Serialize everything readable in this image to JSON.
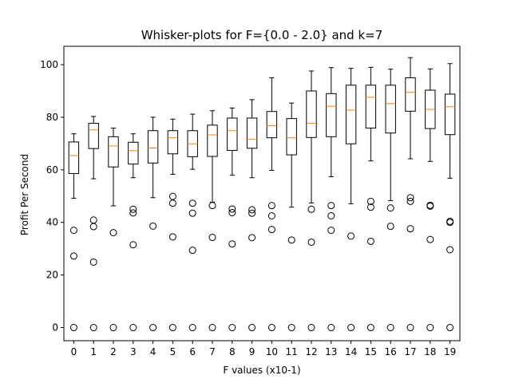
{
  "chart_data": {
    "type": "box",
    "title": "Whisker-plots for F={0.0 - 2.0} and k=7",
    "xlabel": "F values (x10-1)",
    "ylabel": "Profit Per Second",
    "xlim": [
      -0.5,
      19.5
    ],
    "ylim": [
      -5,
      107
    ],
    "yticks": [
      0,
      20,
      40,
      60,
      80,
      100
    ],
    "categories": [
      "0",
      "1",
      "2",
      "3",
      "4",
      "5",
      "6",
      "7",
      "8",
      "9",
      "10",
      "11",
      "12",
      "13",
      "14",
      "15",
      "16",
      "17",
      "18",
      "19"
    ],
    "grid": false,
    "colors": {
      "box": "#000000",
      "median": "#ff7f0e",
      "flier": "#000000"
    },
    "boxes": [
      {
        "whislo": 49.2,
        "q1": 58.6,
        "med": 65.4,
        "q3": 70.6,
        "whishi": 73.7,
        "fliers": [
          0,
          27.2,
          37.0
        ]
      },
      {
        "whislo": 56.6,
        "q1": 68.1,
        "med": 75.2,
        "q3": 77.7,
        "whishi": 80.3,
        "fliers": [
          0,
          24.9,
          38.4,
          40.9
        ]
      },
      {
        "whislo": 46.3,
        "q1": 61.1,
        "med": 69.1,
        "q3": 72.6,
        "whishi": 75.9,
        "fliers": [
          0,
          36.1
        ]
      },
      {
        "whislo": 57.0,
        "q1": 62.2,
        "med": 67.3,
        "q3": 70.5,
        "whishi": 73.7,
        "fliers": [
          0,
          31.5,
          43.6,
          45.0
        ]
      },
      {
        "whislo": 49.4,
        "q1": 62.6,
        "med": 68.3,
        "q3": 74.9,
        "whishi": 80.0,
        "fliers": [
          0,
          38.6
        ]
      },
      {
        "whislo": 58.3,
        "q1": 66.1,
        "med": 72.2,
        "q3": 74.9,
        "whishi": 79.3,
        "fliers": [
          0,
          34.5,
          47.3,
          49.9
        ]
      },
      {
        "whislo": 60.2,
        "q1": 65.0,
        "med": 69.9,
        "q3": 74.9,
        "whishi": 81.2,
        "fliers": [
          0,
          29.4,
          43.5,
          47.3
        ]
      },
      {
        "whislo": 47.7,
        "q1": 65.1,
        "med": 73.3,
        "q3": 77.0,
        "whishi": 82.5,
        "fliers": [
          0,
          34.3,
          46.4
        ]
      },
      {
        "whislo": 58.0,
        "q1": 67.4,
        "med": 74.9,
        "q3": 79.7,
        "whishi": 83.5,
        "fliers": [
          0,
          31.8,
          43.7,
          45.1
        ]
      },
      {
        "whislo": 57.0,
        "q1": 68.2,
        "med": 71.6,
        "q3": 79.7,
        "whishi": 86.7,
        "fliers": [
          0,
          34.2,
          43.5,
          44.8
        ]
      },
      {
        "whislo": 59.8,
        "q1": 72.2,
        "med": 76.8,
        "q3": 82.2,
        "whishi": 95.0,
        "fliers": [
          0,
          37.3,
          42.5,
          46.4
        ]
      },
      {
        "whislo": 45.8,
        "q1": 65.7,
        "med": 72.2,
        "q3": 79.5,
        "whishi": 85.4,
        "fliers": [
          0,
          33.3
        ]
      },
      {
        "whislo": 47.4,
        "q1": 72.3,
        "med": 77.7,
        "q3": 90.0,
        "whishi": 97.6,
        "fliers": [
          0,
          32.5,
          45.0
        ]
      },
      {
        "whislo": 57.4,
        "q1": 72.6,
        "med": 84.2,
        "q3": 89.0,
        "whishi": 98.9,
        "fliers": [
          0,
          37.0,
          42.5,
          46.4
        ]
      },
      {
        "whislo": 47.1,
        "q1": 69.9,
        "med": 82.7,
        "q3": 92.2,
        "whishi": 98.6,
        "fliers": [
          0,
          34.8
        ]
      },
      {
        "whislo": 63.4,
        "q1": 75.9,
        "med": 87.6,
        "q3": 92.2,
        "whishi": 99.0,
        "fliers": [
          0,
          32.8,
          45.8,
          48.0
        ]
      },
      {
        "whislo": 48.3,
        "q1": 74.0,
        "med": 85.2,
        "q3": 92.2,
        "whishi": 98.3,
        "fliers": [
          0,
          38.5,
          45.5
        ]
      },
      {
        "whislo": 64.2,
        "q1": 82.3,
        "med": 89.5,
        "q3": 95.0,
        "whishi": 102.7,
        "fliers": [
          0,
          37.6,
          48.0,
          49.4
        ]
      },
      {
        "whislo": 63.2,
        "q1": 75.7,
        "med": 83.0,
        "q3": 90.3,
        "whishi": 98.4,
        "fliers": [
          0,
          33.5,
          46.2,
          46.5
        ]
      },
      {
        "whislo": 56.8,
        "q1": 73.4,
        "med": 84.0,
        "q3": 88.8,
        "whishi": 100.4,
        "fliers": [
          0,
          29.6,
          40.0,
          40.4
        ]
      }
    ]
  }
}
